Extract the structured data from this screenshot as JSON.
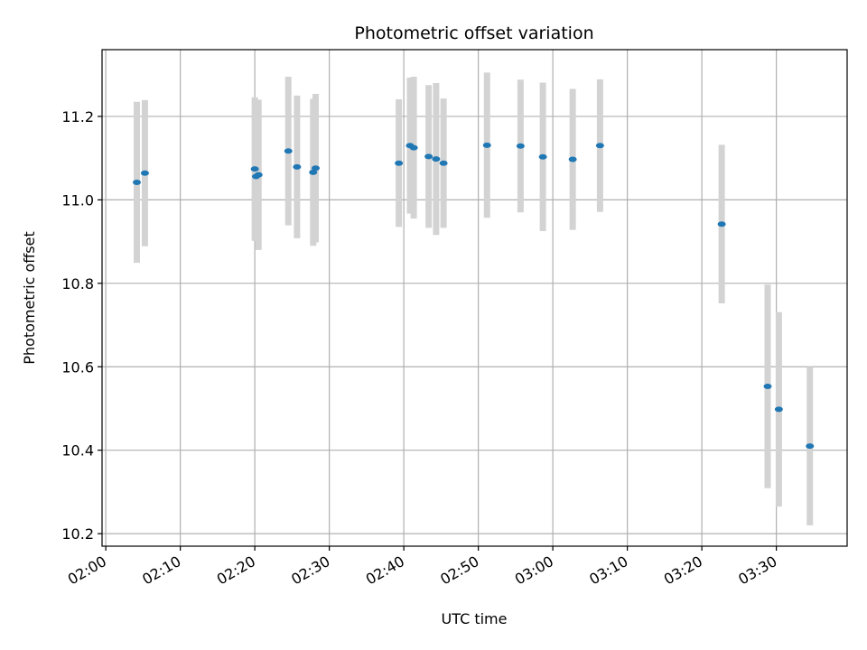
{
  "chart_data": {
    "type": "scatter",
    "title": "Photometric offset variation",
    "xlabel": "UTC time",
    "ylabel": "Photometric offset",
    "x_axis": "time",
    "xlim": [
      "01:59:30",
      "03:39:30"
    ],
    "ylim": [
      10.17,
      11.36
    ],
    "x_ticks": [
      "02:00",
      "02:10",
      "02:20",
      "02:30",
      "02:40",
      "02:50",
      "03:00",
      "03:10",
      "03:20",
      "03:30"
    ],
    "y_ticks": [
      10.2,
      10.4,
      10.6,
      10.8,
      11.0,
      11.2
    ],
    "grid": true,
    "point_color": "#1f77b4",
    "errorbar_color": "#d3d3d3",
    "points": [
      {
        "x": "02:04:10",
        "y": 11.042,
        "err": 0.193
      },
      {
        "x": "02:05:15",
        "y": 11.064,
        "err": 0.175
      },
      {
        "x": "02:20:00",
        "y": 11.074,
        "err": 0.172
      },
      {
        "x": "02:20:10",
        "y": 11.056,
        "err": 0.155
      },
      {
        "x": "02:20:30",
        "y": 11.06,
        "err": 0.18
      },
      {
        "x": "02:24:30",
        "y": 11.117,
        "err": 0.178
      },
      {
        "x": "02:25:40",
        "y": 11.079,
        "err": 0.171
      },
      {
        "x": "02:27:50",
        "y": 11.066,
        "err": 0.176
      },
      {
        "x": "02:28:10",
        "y": 11.076,
        "err": 0.178
      },
      {
        "x": "02:39:20",
        "y": 11.088,
        "err": 0.153
      },
      {
        "x": "02:40:50",
        "y": 11.13,
        "err": 0.163
      },
      {
        "x": "02:41:20",
        "y": 11.125,
        "err": 0.17
      },
      {
        "x": "02:43:20",
        "y": 11.104,
        "err": 0.171
      },
      {
        "x": "02:44:20",
        "y": 11.098,
        "err": 0.182
      },
      {
        "x": "02:45:20",
        "y": 11.088,
        "err": 0.155
      },
      {
        "x": "02:51:10",
        "y": 11.131,
        "err": 0.174
      },
      {
        "x": "02:55:40",
        "y": 11.129,
        "err": 0.159
      },
      {
        "x": "02:58:40",
        "y": 11.103,
        "err": 0.178
      },
      {
        "x": "03:02:40",
        "y": 11.097,
        "err": 0.169
      },
      {
        "x": "03:06:20",
        "y": 11.13,
        "err": 0.159
      },
      {
        "x": "03:22:40",
        "y": 10.942,
        "err": 0.19
      },
      {
        "x": "03:28:50",
        "y": 10.553,
        "err": 0.244
      },
      {
        "x": "03:30:20",
        "y": 10.498,
        "err": 0.233
      },
      {
        "x": "03:34:30",
        "y": 10.41,
        "err": 0.19
      }
    ]
  }
}
